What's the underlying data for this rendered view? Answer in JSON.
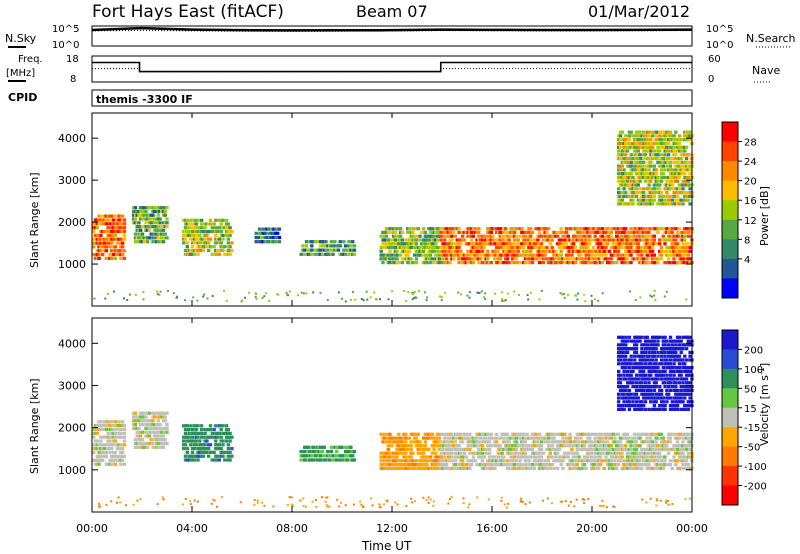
{
  "header": {
    "station": "Fort Hays East (fitACF)",
    "beam": "Beam 07",
    "date": "01/Mar/2012"
  },
  "strips": {
    "nsky_label": "N.Sky",
    "nsearch_label": "N.Search",
    "count_tick_high": "10^5",
    "count_tick_low": "10^0",
    "freq_label_1": "Freq.",
    "freq_label_2": "[MHz]",
    "freq_ticks": [
      "18",
      "8"
    ],
    "nave_label": "Nave",
    "nave_ticks": [
      "60",
      "0"
    ],
    "cpid_label": "CPID",
    "cpid_text": "themis -3300 IF"
  },
  "chart_data": [
    {
      "type": "line",
      "title": "N.Sky / N.Search",
      "x_range_hours": [
        0,
        24
      ],
      "ylim": [
        1,
        100000
      ],
      "log_scale": true,
      "series": [
        {
          "name": "N.Sky",
          "x": [
            0,
            2,
            4,
            6,
            8,
            10,
            12,
            14,
            16,
            18,
            20,
            22,
            24
          ],
          "values": [
            10000,
            30000,
            12000,
            9000,
            8000,
            8500,
            9000,
            12000,
            11000,
            10000,
            10000,
            11000,
            12000
          ]
        },
        {
          "name": "N.Search",
          "x": [
            0,
            2,
            4,
            6,
            8,
            10,
            12,
            14,
            16,
            18,
            20,
            22,
            24
          ],
          "values": [
            6000,
            8000,
            6000,
            5000,
            5000,
            5000,
            5500,
            7000,
            6500,
            6000,
            6000,
            6500,
            7000
          ]
        }
      ]
    },
    {
      "type": "line",
      "title": "Freq / Nave",
      "x_range_hours": [
        0,
        24
      ],
      "ylim": [
        8,
        18
      ],
      "series": [
        {
          "name": "Freq.",
          "x": [
            0,
            1.9,
            1.9,
            13.95,
            13.95,
            24
          ],
          "values": [
            15.5,
            15.5,
            12,
            12,
            15.5,
            15.5
          ]
        },
        {
          "name": "Nave",
          "x": [
            0,
            1.9,
            1.9,
            13.95,
            13.95,
            24
          ],
          "values": [
            31,
            31,
            24,
            24,
            31,
            31
          ]
        }
      ]
    },
    {
      "type": "heatmap",
      "title": "Power",
      "xlabel": "",
      "ylabel": "Slant Range [km]",
      "ylim": [
        0,
        4600
      ],
      "colorbar_label": "Power [dB]",
      "colorbar_ticks": [
        "28",
        "24",
        "20",
        "16",
        "12",
        "8",
        "4"
      ],
      "colorbar_colors": [
        "#ff0000",
        "#ff4400",
        "#ff8800",
        "#ffbb00",
        "#99cc00",
        "#55aa44",
        "#338866",
        "#225599",
        "#0000ff"
      ],
      "echo_regions": [
        {
          "t0": 0.0,
          "t1": 1.3,
          "r0": 1100,
          "r1": 2200,
          "level": 22
        },
        {
          "t0": 1.6,
          "t1": 3.0,
          "r0": 1500,
          "r1": 2400,
          "level": 10
        },
        {
          "t0": 3.6,
          "t1": 5.6,
          "r0": 1200,
          "r1": 2100,
          "level": 14
        },
        {
          "t0": 6.5,
          "t1": 7.5,
          "r0": 1500,
          "r1": 1900,
          "level": 6
        },
        {
          "t0": 8.3,
          "t1": 10.5,
          "r0": 1200,
          "r1": 1600,
          "level": 9
        },
        {
          "t0": 11.5,
          "t1": 13.9,
          "r0": 1000,
          "r1": 1900,
          "level": 12
        },
        {
          "t0": 13.9,
          "t1": 24.0,
          "r0": 1000,
          "r1": 1900,
          "level": 22
        },
        {
          "t0": 21.0,
          "t1": 24.0,
          "r0": 2400,
          "r1": 4200,
          "level": 14
        }
      ]
    },
    {
      "type": "heatmap",
      "title": "Velocity",
      "xlabel": "Time UT",
      "ylabel": "Slant Range [km]",
      "ylim": [
        0,
        4600
      ],
      "x_ticks": [
        "00:00",
        "04:00",
        "08:00",
        "12:00",
        "16:00",
        "20:00",
        "00:00"
      ],
      "y_ticks": [
        "1000",
        "2000",
        "3000",
        "4000"
      ],
      "colorbar_label": "Velocity [m s-1]",
      "colorbar_ticks": [
        "200",
        "100",
        "50",
        "15",
        "-15",
        "-50",
        "-100",
        "-200"
      ],
      "colorbar_colors": [
        "#1a1acc",
        "#2b4ad6",
        "#2d8f5a",
        "#66c840",
        "#c0c0b8",
        "#ffa500",
        "#ff7a00",
        "#ff3300",
        "#ff0000"
      ],
      "echo_regions": [
        {
          "t0": 0.0,
          "t1": 1.3,
          "r0": 1100,
          "r1": 2200,
          "level": 0
        },
        {
          "t0": 1.6,
          "t1": 3.0,
          "r0": 1500,
          "r1": 2400,
          "level": 0
        },
        {
          "t0": 3.6,
          "t1": 5.6,
          "r0": 1200,
          "r1": 2100,
          "level": 60
        },
        {
          "t0": 8.3,
          "t1": 10.5,
          "r0": 1200,
          "r1": 1600,
          "level": 40
        },
        {
          "t0": 11.5,
          "t1": 13.9,
          "r0": 1000,
          "r1": 1900,
          "level": -40
        },
        {
          "t0": 13.9,
          "t1": 24.0,
          "r0": 1000,
          "r1": 1900,
          "level": 0
        },
        {
          "t0": 21.0,
          "t1": 24.0,
          "r0": 2400,
          "r1": 4200,
          "level": 200
        }
      ]
    }
  ]
}
